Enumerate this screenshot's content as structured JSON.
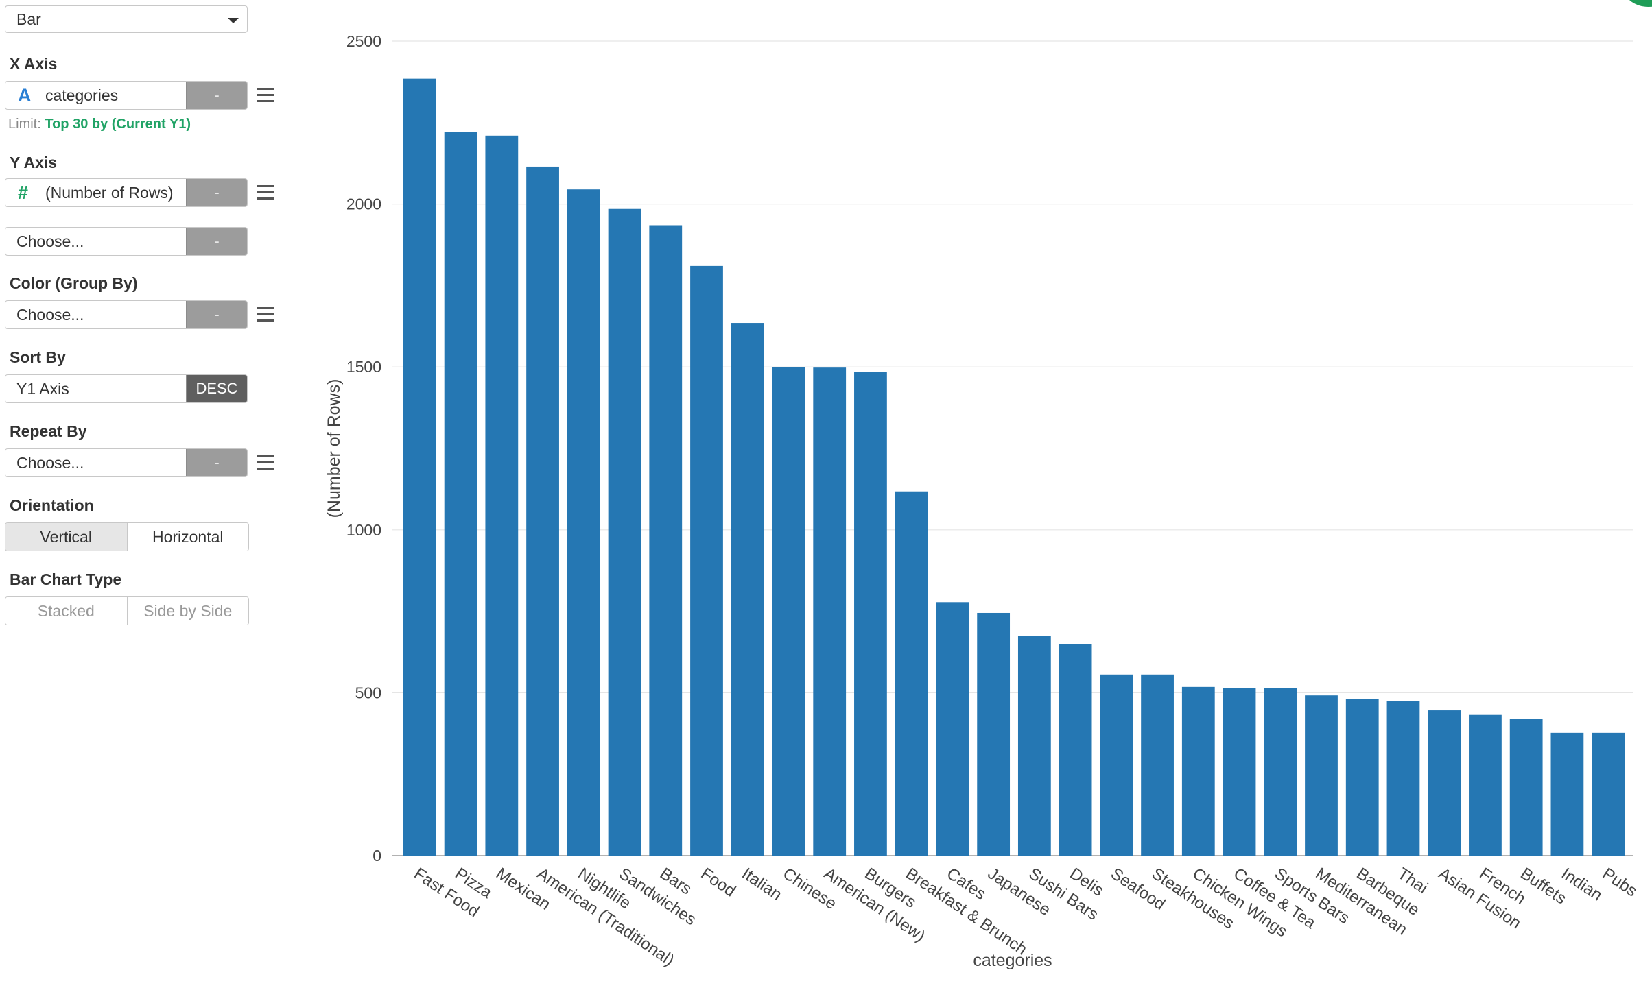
{
  "controls": {
    "chart_type": "Bar",
    "x_axis": {
      "label": "X Axis",
      "column": "categories",
      "icon": "A",
      "button": "-",
      "limit_prefix": "Limit:",
      "limit_value": "Top 30 by (Current Y1)"
    },
    "y_axis": {
      "label": "Y Axis",
      "column": "(Number of Rows)",
      "icon": "#",
      "button": "-",
      "second_placeholder": "Choose...",
      "second_button": "-"
    },
    "color": {
      "label": "Color (Group By)",
      "value": "Choose...",
      "button": "-"
    },
    "sort": {
      "label": "Sort By",
      "value": "Y1 Axis",
      "button": "DESC"
    },
    "repeat": {
      "label": "Repeat By",
      "value": "Choose...",
      "button": "-"
    },
    "orientation": {
      "label": "Orientation",
      "options": [
        "Vertical",
        "Horizontal"
      ],
      "selected": "Vertical"
    },
    "bar_type": {
      "label": "Bar Chart Type",
      "options": [
        "Stacked",
        "Side by Side"
      ]
    }
  },
  "colors": {
    "bar": "#2577b3",
    "x_icon": "#2a7fd4",
    "y_icon": "#21a366",
    "limit": "#21a366"
  },
  "chart_data": {
    "type": "bar",
    "xlabel": "categories",
    "ylabel": "(Number of Rows)",
    "ylim": [
      0,
      2500
    ],
    "yticks": [
      0,
      500,
      1000,
      1500,
      2000,
      2500
    ],
    "grid": true,
    "categories": [
      "Fast Food",
      "Pizza",
      "Mexican",
      "American (Traditional)",
      "Nightlife",
      "Sandwiches",
      "Bars",
      "Food",
      "Italian",
      "Chinese",
      "American (New)",
      "Burgers",
      "Breakfast & Brunch",
      "Cafes",
      "Japanese",
      "Sushi Bars",
      "Delis",
      "Seafood",
      "Steakhouses",
      "Chicken Wings",
      "Coffee & Tea",
      "Sports Bars",
      "Mediterranean",
      "Barbeque",
      "Thai",
      "Asian Fusion",
      "French",
      "Buffets",
      "Indian",
      "Pubs"
    ],
    "values": [
      2385,
      2222,
      2210,
      2115,
      2045,
      1985,
      1935,
      1810,
      1635,
      1500,
      1498,
      1485,
      1118,
      778,
      745,
      675,
      650,
      556,
      556,
      518,
      515,
      514,
      492,
      480,
      475,
      446,
      432,
      419,
      377,
      377
    ]
  }
}
